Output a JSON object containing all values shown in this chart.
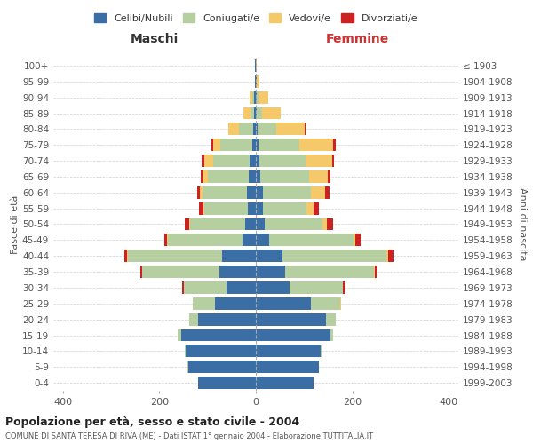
{
  "age_groups": [
    "0-4",
    "5-9",
    "10-14",
    "15-19",
    "20-24",
    "25-29",
    "30-34",
    "35-39",
    "40-44",
    "45-49",
    "50-54",
    "55-59",
    "60-64",
    "65-69",
    "70-74",
    "75-79",
    "80-84",
    "85-89",
    "90-94",
    "95-99",
    "100+"
  ],
  "birth_years": [
    "1999-2003",
    "1994-1998",
    "1989-1993",
    "1984-1988",
    "1979-1983",
    "1974-1978",
    "1969-1973",
    "1964-1968",
    "1959-1963",
    "1954-1958",
    "1949-1953",
    "1944-1948",
    "1939-1943",
    "1934-1938",
    "1929-1933",
    "1924-1928",
    "1919-1923",
    "1914-1918",
    "1909-1913",
    "1904-1908",
    "≤ 1903"
  ],
  "colors": {
    "celibi": "#3a6ea5",
    "coniugati": "#b5cfa0",
    "vedovi": "#f5c96a",
    "divorziati": "#cc2222"
  },
  "males": {
    "celibi": [
      120,
      140,
      145,
      155,
      120,
      85,
      60,
      75,
      70,
      28,
      22,
      17,
      18,
      15,
      13,
      8,
      5,
      3,
      3,
      1,
      1
    ],
    "coniugati": [
      0,
      1,
      2,
      8,
      18,
      45,
      90,
      160,
      195,
      155,
      115,
      90,
      92,
      85,
      75,
      65,
      30,
      8,
      4,
      0,
      0
    ],
    "vedovi": [
      0,
      0,
      0,
      0,
      0,
      0,
      0,
      1,
      2,
      1,
      2,
      2,
      6,
      10,
      18,
      15,
      22,
      14,
      6,
      1,
      0
    ],
    "divorziati": [
      0,
      0,
      0,
      0,
      0,
      0,
      2,
      4,
      6,
      6,
      8,
      8,
      6,
      5,
      6,
      5,
      1,
      0,
      0,
      0,
      0
    ]
  },
  "females": {
    "celibi": [
      120,
      130,
      135,
      155,
      145,
      115,
      70,
      60,
      55,
      28,
      18,
      15,
      14,
      10,
      8,
      5,
      4,
      2,
      2,
      1,
      0
    ],
    "coniugati": [
      0,
      1,
      2,
      5,
      20,
      60,
      110,
      185,
      215,
      175,
      120,
      90,
      100,
      100,
      95,
      85,
      38,
      10,
      4,
      1,
      0
    ],
    "vedovi": [
      0,
      0,
      0,
      0,
      0,
      1,
      0,
      2,
      4,
      4,
      10,
      15,
      30,
      40,
      55,
      70,
      60,
      40,
      20,
      5,
      1
    ],
    "divorziati": [
      0,
      0,
      0,
      0,
      0,
      1,
      4,
      4,
      12,
      10,
      12,
      10,
      8,
      4,
      5,
      6,
      1,
      0,
      0,
      0,
      0
    ]
  },
  "xlim": 420,
  "title": "Popolazione per età, sesso e stato civile - 2004",
  "subtitle": "COMUNE DI SANTA TERESA DI RIVA (ME) - Dati ISTAT 1° gennaio 2004 - Elaborazione TUTTITALIA.IT",
  "xlabel_left": "Maschi",
  "xlabel_right": "Femmine",
  "ylabel_left": "Fasce di età",
  "ylabel_right": "Anni di nascita",
  "legend_labels": [
    "Celibi/Nubili",
    "Coniugati/e",
    "Vedovi/e",
    "Divorziati/e"
  ],
  "bg_color": "#ffffff",
  "grid_color": "#cccccc"
}
